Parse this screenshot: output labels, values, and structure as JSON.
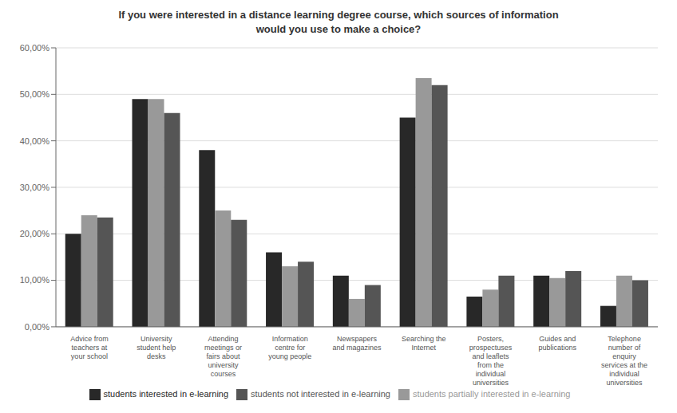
{
  "chart_data": {
    "type": "bar",
    "title": "If you were interested in a distance learning degree course, which sources of information\nwould you use to make a choice?",
    "categories": [
      "Advice from\nteachers at\nyour school",
      "University\nstudent help\ndesks",
      "Attending\nmeetings or\nfairs about\nuniversity\ncourses",
      "Information\ncentre for\nyoung people",
      "Newspapers\nand magazines",
      "Searching the\nInternet",
      "Posters,\nprospectuses\nand leaflets\nfrom the\nindividual\nuniversities",
      "Guides and\npublications",
      "Telephone\nnumber of\nenquiry\nservices at the\nindividual\nuniversities"
    ],
    "series": [
      {
        "name": "students interested in e-learning",
        "color": "#282828",
        "values": [
          20.0,
          49.0,
          38.0,
          16.0,
          11.0,
          45.0,
          6.5,
          11.0,
          4.5
        ]
      },
      {
        "name": "students partially interested in e-learning",
        "color": "#999999",
        "values": [
          24.0,
          49.0,
          25.0,
          13.0,
          6.0,
          53.5,
          8.0,
          10.5,
          11.0
        ]
      },
      {
        "name": "students not interested in e-learning",
        "color": "#555555",
        "values": [
          23.5,
          46.0,
          23.0,
          14.0,
          9.0,
          52.0,
          11.0,
          12.0,
          10.0
        ]
      }
    ],
    "ylim": [
      0,
      60
    ],
    "yticks": [
      {
        "value": 0,
        "label": "0,00%"
      },
      {
        "value": 10,
        "label": "10,00%"
      },
      {
        "value": 20,
        "label": "20,00%"
      },
      {
        "value": 30,
        "label": "30,00%"
      },
      {
        "value": 40,
        "label": "40,00%"
      },
      {
        "value": 50,
        "label": "50,00%"
      },
      {
        "value": 60,
        "label": "60,00%"
      }
    ],
    "grid": true,
    "legend": "bottom"
  }
}
